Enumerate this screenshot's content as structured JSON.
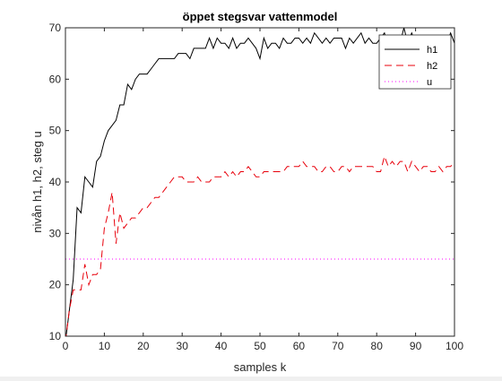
{
  "chart_data": {
    "type": "line",
    "title": "öppet stegsvar vattenmodel",
    "xlabel": "samples k",
    "ylabel": "nivån h1, h2, steg u",
    "xlim": [
      0,
      100
    ],
    "ylim": [
      10,
      70
    ],
    "x_ticks": [
      0,
      10,
      20,
      30,
      40,
      50,
      60,
      70,
      80,
      90,
      100
    ],
    "y_ticks": [
      10,
      20,
      30,
      40,
      50,
      60,
      70
    ],
    "legend_position": "top-right",
    "grid": false,
    "x": [
      0,
      1,
      2,
      3,
      4,
      5,
      6,
      7,
      8,
      9,
      10,
      11,
      12,
      13,
      14,
      15,
      16,
      17,
      18,
      19,
      20,
      21,
      22,
      23,
      24,
      25,
      26,
      27,
      28,
      29,
      30,
      31,
      32,
      33,
      34,
      35,
      36,
      37,
      38,
      39,
      40,
      41,
      42,
      43,
      44,
      45,
      46,
      47,
      48,
      49,
      50,
      51,
      52,
      53,
      54,
      55,
      56,
      57,
      58,
      59,
      60,
      61,
      62,
      63,
      64,
      65,
      66,
      67,
      68,
      69,
      70,
      71,
      72,
      73,
      74,
      75,
      76,
      77,
      78,
      79,
      80,
      81,
      82,
      83,
      84,
      85,
      86,
      87,
      88,
      89,
      90,
      91,
      92,
      93,
      94,
      95,
      96,
      97,
      98,
      99,
      100
    ],
    "series": [
      {
        "name": "h1",
        "color": "#000000",
        "dash": "solid",
        "values": [
          9,
          15,
          21,
          35,
          34,
          41,
          40,
          39,
          44,
          45,
          48,
          50,
          51,
          52,
          55,
          55,
          59,
          58,
          60,
          61,
          61,
          61,
          62,
          63,
          64,
          64,
          64,
          64,
          64,
          65,
          65,
          65,
          64,
          66,
          66,
          66,
          66,
          68,
          66,
          68,
          67,
          67,
          66,
          68,
          66,
          67,
          67,
          68,
          67,
          66,
          64,
          68,
          66,
          67,
          67,
          66,
          68,
          67,
          67,
          68,
          68,
          67,
          68,
          67,
          69,
          68,
          67,
          68,
          67,
          68,
          68,
          68,
          66,
          68,
          67,
          68,
          69,
          67,
          68,
          67,
          67,
          68,
          69,
          66,
          68,
          68,
          67,
          70,
          67,
          69,
          67,
          68,
          68,
          67,
          68,
          67,
          67,
          67,
          67,
          69,
          67
        ]
      },
      {
        "name": "h2",
        "color": "#e8000b",
        "dash": "dashed",
        "values": [
          9,
          15,
          19,
          19,
          19,
          24,
          20,
          22,
          22,
          23,
          31,
          34,
          38,
          28,
          34,
          31,
          32,
          33,
          33,
          34,
          35,
          35,
          36,
          37,
          37,
          38,
          39,
          40,
          41,
          41,
          41,
          40,
          40,
          40,
          41,
          40,
          40,
          40,
          41,
          41,
          41,
          42,
          41,
          42,
          41,
          42,
          42,
          43,
          42,
          41,
          41,
          42,
          42,
          42,
          42,
          42,
          42,
          43,
          43,
          43,
          43,
          44,
          43,
          43,
          43,
          42,
          42,
          43,
          43,
          42,
          42,
          43,
          43,
          42,
          43,
          43,
          43,
          43,
          43,
          43,
          42,
          42,
          45,
          43,
          44,
          43,
          44,
          44,
          42,
          44,
          43,
          42,
          43,
          43,
          42,
          42,
          43,
          42,
          43,
          43,
          44
        ]
      },
      {
        "name": "u",
        "color": "#ff00ff",
        "dash": "dotted",
        "values": [
          25,
          25,
          25,
          25,
          25,
          25,
          25,
          25,
          25,
          25,
          25,
          25,
          25,
          25,
          25,
          25,
          25,
          25,
          25,
          25,
          25,
          25,
          25,
          25,
          25,
          25,
          25,
          25,
          25,
          25,
          25,
          25,
          25,
          25,
          25,
          25,
          25,
          25,
          25,
          25,
          25,
          25,
          25,
          25,
          25,
          25,
          25,
          25,
          25,
          25,
          25,
          25,
          25,
          25,
          25,
          25,
          25,
          25,
          25,
          25,
          25,
          25,
          25,
          25,
          25,
          25,
          25,
          25,
          25,
          25,
          25,
          25,
          25,
          25,
          25,
          25,
          25,
          25,
          25,
          25,
          25,
          25,
          25,
          25,
          25,
          25,
          25,
          25,
          25,
          25,
          25,
          25,
          25,
          25,
          25,
          25,
          25,
          25,
          25,
          25,
          25
        ]
      }
    ]
  }
}
